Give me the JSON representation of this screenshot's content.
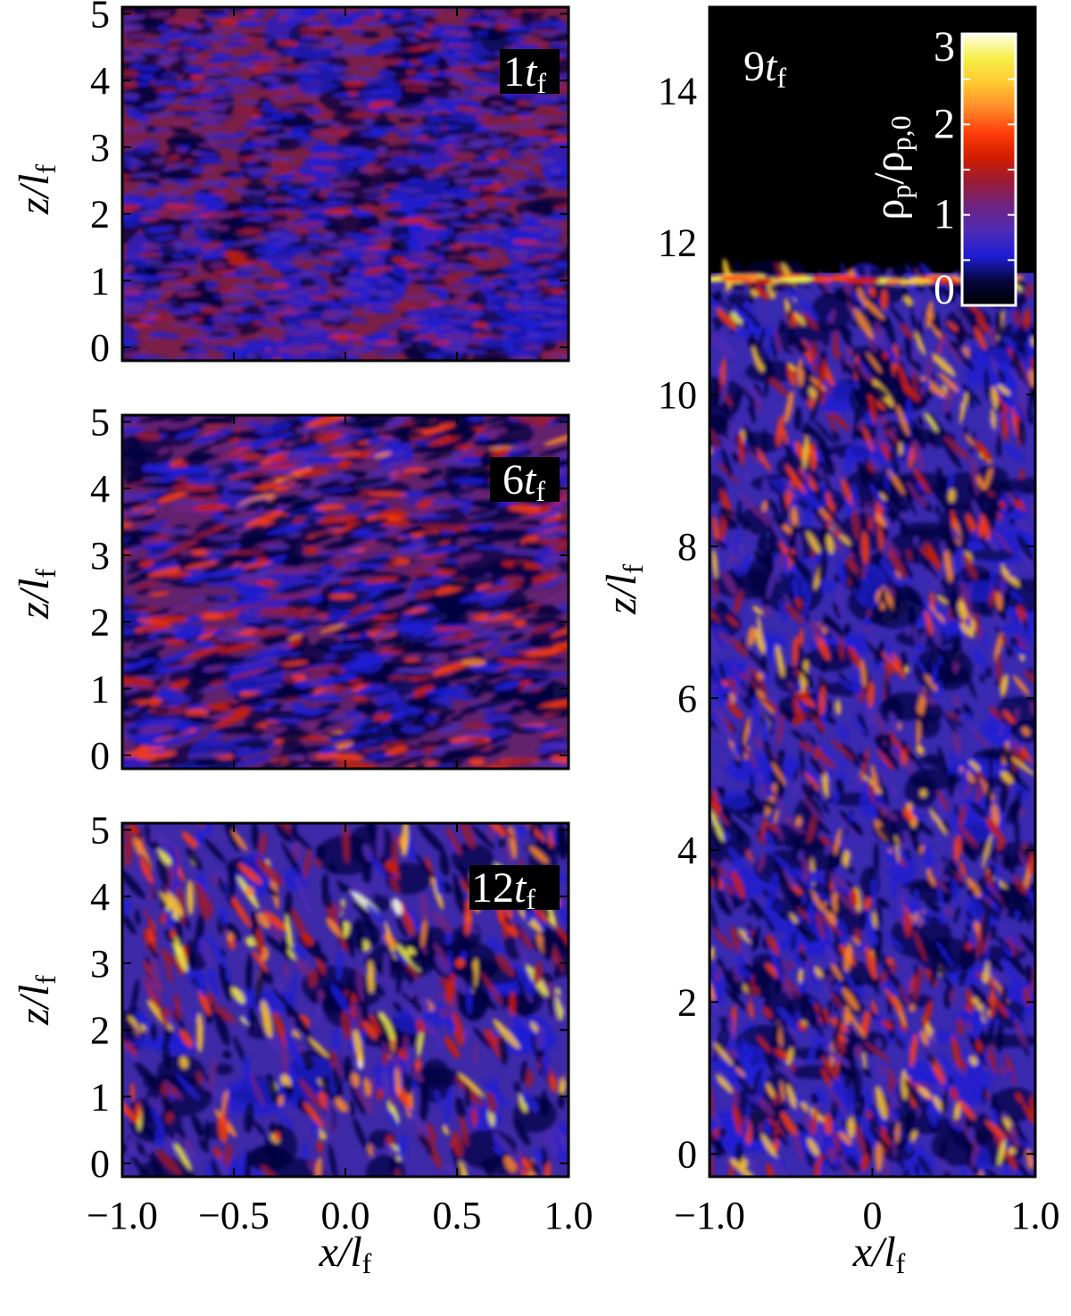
{
  "colormap": [
    "#000000",
    "#06063e",
    "#1d1dd6",
    "#4d2cb4",
    "#6e2384",
    "#991b34",
    "#d21d00",
    "#ff3d0a",
    "#ff8a2a",
    "#ffc830",
    "#f5ef48",
    "#ffffe6"
  ],
  "chart_data": [
    {
      "type": "heatmap",
      "time_label": {
        "num": "1",
        "var": "t",
        "sub": "f"
      },
      "xlabel": {
        "var": "x/l",
        "sub": "f"
      },
      "ylabel": {
        "var": "z/l",
        "sub": "f"
      },
      "xlim": [
        -1.0,
        1.0
      ],
      "ylim": [
        -0.2,
        5.1
      ],
      "x_ticks": [
        -1.0,
        -0.5,
        0.0,
        0.5,
        1.0
      ],
      "x_ticklabels": [],
      "y_ticks": [
        0,
        1,
        2,
        3,
        4,
        5
      ],
      "y_ticklabels": [
        "0",
        "1",
        "2",
        "3",
        "4",
        "5"
      ],
      "color_quantity": "ρp/ρp,0",
      "color_range": [
        0,
        3
      ],
      "field": "fine horizontal streaks, nearly uniform, values ~0.5–1.5"
    },
    {
      "type": "heatmap",
      "time_label": {
        "num": "6",
        "var": "t",
        "sub": "f"
      },
      "xlabel": {
        "var": "x/l",
        "sub": "f"
      },
      "ylabel": {
        "var": "z/l",
        "sub": "f"
      },
      "xlim": [
        -1.0,
        1.0
      ],
      "ylim": [
        -0.2,
        5.1
      ],
      "x_ticks": [
        -1.0,
        -0.5,
        0.0,
        0.5,
        1.0
      ],
      "x_ticklabels": [],
      "y_ticks": [
        0,
        1,
        2,
        3,
        4,
        5
      ],
      "y_ticklabels": [
        "0",
        "1",
        "2",
        "3",
        "4",
        "5"
      ],
      "color_quantity": "ρp/ρp,0",
      "color_range": [
        0,
        3
      ],
      "field": "elongated horizontal filaments, values ~0.3–2"
    },
    {
      "type": "heatmap",
      "time_label": {
        "num": "12",
        "var": "t",
        "sub": "f"
      },
      "xlabel": {
        "var": "x/l",
        "sub": "f"
      },
      "ylabel": {
        "var": "z/l",
        "sub": "f"
      },
      "xlim": [
        -1.0,
        1.0
      ],
      "ylim": [
        -0.2,
        5.1
      ],
      "x_ticks": [
        -1.0,
        -0.5,
        0.0,
        0.5,
        1.0
      ],
      "x_ticklabels": [
        "−1.0",
        "−0.5",
        "0.0",
        "0.5",
        "1.0"
      ],
      "y_ticks": [
        0,
        1,
        2,
        3,
        4,
        5
      ],
      "y_ticklabels": [
        "0",
        "1",
        "2",
        "3",
        "4",
        "5"
      ],
      "color_quantity": "ρp/ρp,0",
      "color_range": [
        0,
        3
      ],
      "field": "tilted vertical filaments with dense bright clumps, blue voids"
    },
    {
      "type": "heatmap",
      "time_label": {
        "num": "9",
        "var": "t",
        "sub": "f"
      },
      "xlabel": {
        "var": "x/l",
        "sub": "f"
      },
      "ylabel": {
        "var": "z/l",
        "sub": "f"
      },
      "xlim": [
        -1.0,
        1.0
      ],
      "ylim": [
        -0.3,
        15.1
      ],
      "x_ticks": [
        -1.0,
        0.0,
        1.0
      ],
      "x_ticklabels": [
        "−1.0",
        "0",
        "1.0"
      ],
      "y_ticks": [
        0,
        2,
        4,
        6,
        8,
        10,
        12,
        14
      ],
      "y_ticklabels": [
        "0",
        "2",
        "4",
        "6",
        "8",
        "10",
        "12",
        "14"
      ],
      "color_quantity": "ρp/ρp,0",
      "color_range": [
        0,
        3
      ],
      "field": "V-shaped filaments growing upward; particle layer top at z≈11.5, empty (black) above",
      "layer_top_z": 11.6
    }
  ],
  "colorbar": {
    "label_main": "ρ",
    "label_sub1": "p",
    "label_sep": "/ρ",
    "label_sub2": "p,0",
    "range": [
      0,
      3
    ],
    "ticks": [
      0,
      1,
      2,
      3
    ],
    "ticklabels": [
      "0",
      "1",
      "2",
      "3"
    ]
  }
}
